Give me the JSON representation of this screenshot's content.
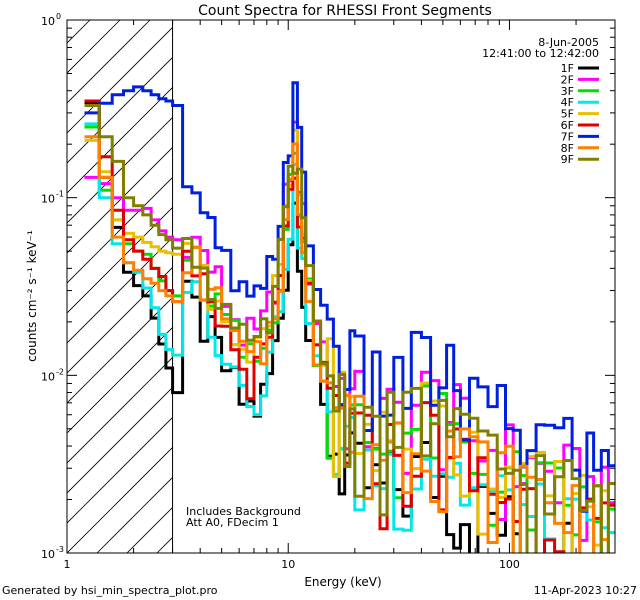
{
  "chart_data": {
    "type": "line",
    "title": "Count Spectra for RHESSI Front Segments",
    "xlabel": "Energy (keV)",
    "ylabel": "counts cm⁻² s⁻¹ keV⁻¹",
    "xscale": "log",
    "yscale": "log",
    "xlim": [
      1,
      300
    ],
    "ylim": [
      0.001,
      1
    ],
    "xticks": [
      {
        "value": 1,
        "label": "1"
      },
      {
        "value": 10,
        "label": "10"
      },
      {
        "value": 100,
        "label": "100"
      }
    ],
    "yticks": [
      {
        "value": 1,
        "label": "10",
        "exp": "0"
      },
      {
        "value": 0.1,
        "label": "10",
        "exp": "-1"
      },
      {
        "value": 0.01,
        "label": "10",
        "exp": "-2"
      },
      {
        "value": 0.001,
        "label": "10",
        "exp": "-3"
      }
    ],
    "date": "8-Jun-2005",
    "time_range": "12:41:00 to 12:42:00",
    "shaded_upper_energy": 3,
    "annotation": [
      "Includes Background",
      "Att A0, FDecim 1"
    ],
    "footer_left": "Generated by hsi_min_spectra_plot.pro",
    "footer_right": "11-Apr-2023 10:27",
    "bins": [
      1.2,
      1.4,
      1.6,
      1.8,
      2.0,
      2.2,
      2.4,
      2.6,
      2.8,
      3.0,
      3.33,
      3.67,
      4.0,
      4.33,
      4.67,
      5.0,
      5.5,
      6.0,
      6.5,
      7.0,
      7.5,
      8.0,
      8.5,
      9.0,
      9.5,
      10.0,
      10.5,
      11.0,
      11.5,
      12.0,
      13,
      14,
      15,
      16,
      17,
      18,
      19,
      20,
      22,
      24,
      26,
      28,
      30,
      33,
      36,
      40,
      44,
      48,
      52,
      56,
      60,
      66,
      72,
      80,
      88,
      96,
      104,
      112,
      120,
      132,
      144,
      160,
      176,
      192,
      208,
      224,
      240,
      260,
      280,
      300
    ],
    "series": [
      {
        "name": "1F",
        "color": "#000000",
        "scale": 0.55,
        "low": [
          0.34,
          0.13,
          0.068,
          0.038,
          0.032,
          0.028,
          0.021,
          0.015,
          0.011,
          0.008
        ]
      },
      {
        "name": "2F",
        "color": "#ff00ff",
        "scale": 1.35,
        "low": [
          0.13,
          0.12,
          0.1,
          0.085,
          0.085,
          0.087,
          0.075,
          0.065,
          0.06,
          0.058
        ]
      },
      {
        "name": "3F",
        "color": "#00e000",
        "scale": 1.0,
        "low": [
          0.25,
          0.11,
          0.075,
          0.055,
          0.05,
          0.048,
          0.04,
          0.034,
          0.03,
          0.028
        ]
      },
      {
        "name": "4F",
        "color": "#00e8e8",
        "scale": 0.7,
        "low": [
          0.26,
          0.1,
          0.055,
          0.043,
          0.038,
          0.031,
          0.024,
          0.017,
          0.014,
          0.013
        ]
      },
      {
        "name": "5F",
        "color": "#e8c000",
        "scale": 1.1,
        "low": [
          0.21,
          0.14,
          0.075,
          0.063,
          0.06,
          0.056,
          0.053,
          0.05,
          0.049,
          0.048
        ]
      },
      {
        "name": "6F",
        "color": "#e00000",
        "scale": 0.85,
        "low": [
          0.35,
          0.17,
          0.085,
          0.058,
          0.05,
          0.045,
          0.04,
          0.036,
          0.03,
          0.026
        ]
      },
      {
        "name": "7F",
        "color": "#0020e0",
        "scale": 2.1,
        "low": [
          0.3,
          0.34,
          0.38,
          0.4,
          0.42,
          0.4,
          0.38,
          0.36,
          0.35,
          0.33
        ]
      },
      {
        "name": "8F",
        "color": "#ff8000",
        "scale": 1.0,
        "low": [
          0.22,
          0.13,
          0.06,
          0.043,
          0.039,
          0.035,
          0.033,
          0.03,
          0.028,
          0.026
        ]
      },
      {
        "name": "9F",
        "color": "#808000",
        "scale": 1.15,
        "low": [
          0.33,
          0.22,
          0.16,
          0.1,
          0.09,
          0.08,
          0.07,
          0.062,
          0.058,
          0.052
        ]
      }
    ],
    "high_energy_shape": [
      0.048,
      0.042,
      0.035,
      0.03,
      0.025,
      0.02,
      0.016,
      0.013,
      0.012,
      0.012,
      0.014,
      0.018,
      0.026,
      0.04,
      0.07,
      0.11,
      0.17,
      0.1,
      0.055,
      0.03,
      0.016,
      0.011,
      0.0085,
      0.007,
      0.0062,
      0.0056,
      0.005,
      0.0046,
      0.0042,
      0.004,
      0.0038,
      0.004,
      0.0042,
      0.0045,
      0.0048,
      0.0052,
      0.005,
      0.0046,
      0.0042,
      0.0038,
      0.0034,
      0.0031,
      0.0029,
      0.0027,
      0.0025,
      0.0024,
      0.0023,
      0.0022,
      0.0021,
      0.002,
      0.002,
      0.0019,
      0.0018,
      0.0017,
      0.0016,
      0.0015,
      0.0014,
      0.0013,
      0.0013
    ]
  }
}
